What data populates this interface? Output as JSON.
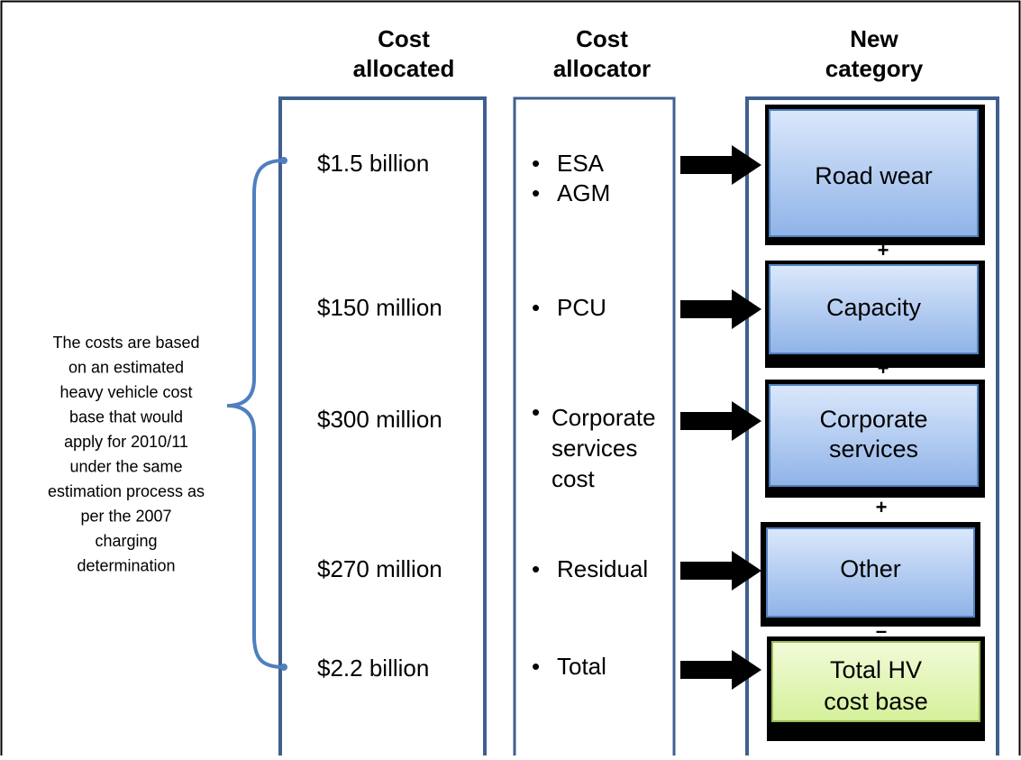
{
  "headers": [
    [
      "Cost",
      "allocated"
    ],
    [
      "Cost",
      "allocator"
    ],
    [
      "New",
      "category"
    ]
  ],
  "rows": [
    {
      "cost": "$1.5 billion",
      "allocator": [
        [
          "ESA"
        ],
        [
          "AGM"
        ]
      ],
      "category": [
        "Road wear"
      ]
    },
    {
      "cost": "$150 million",
      "allocator": [
        [
          "PCU"
        ]
      ],
      "category": [
        "Capacity"
      ]
    },
    {
      "cost": "$300 million",
      "allocator": [
        [
          "Corporate",
          "services",
          "cost"
        ]
      ],
      "category": [
        "Corporate",
        "services"
      ]
    },
    {
      "cost": "$270 million",
      "allocator": [
        [
          "Residual"
        ]
      ],
      "category": [
        "Other"
      ]
    },
    {
      "cost": "$2.2 billion",
      "allocator": [
        [
          "Total"
        ]
      ],
      "category": [
        "Total HV",
        "cost base"
      ]
    }
  ],
  "operators": [
    "+",
    "+",
    "+",
    "–"
  ],
  "note": [
    "The costs are based",
    "on an estimated",
    "heavy vehicle cost",
    "base that would",
    "apply for 2010/11",
    "under the same",
    "estimation process as",
    "per the 2007",
    "charging",
    "determination"
  ]
}
